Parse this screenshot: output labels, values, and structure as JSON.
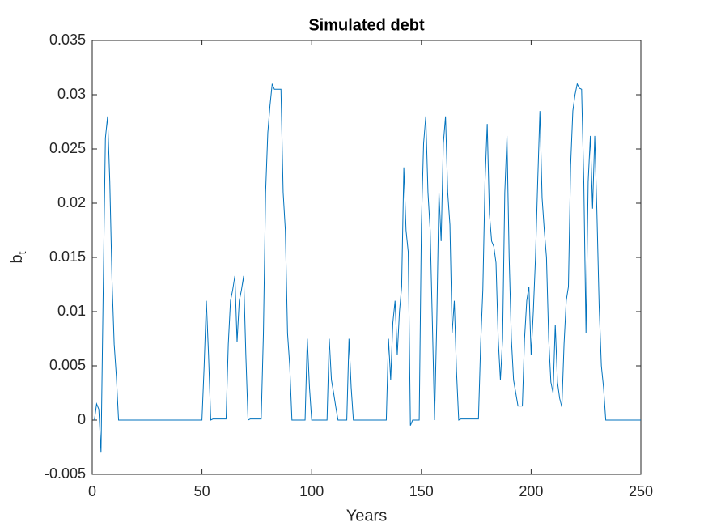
{
  "chart_data": {
    "type": "line",
    "title": "Simulated debt",
    "x_label": "Years",
    "y_label": "b",
    "y_label_subscript": "t",
    "color": "#0072bd",
    "x": [
      1,
      2,
      3,
      4,
      5,
      6,
      7,
      8,
      9,
      10,
      11,
      12,
      50,
      51,
      52,
      53,
      54,
      55,
      61,
      62,
      63,
      64,
      65,
      66,
      67,
      68,
      69,
      70,
      71,
      72,
      77,
      78,
      79,
      80,
      81,
      82,
      83,
      86,
      87,
      88,
      89,
      90,
      91,
      97,
      98,
      99,
      100,
      107,
      108,
      109,
      110,
      111,
      112,
      116,
      117,
      118,
      119,
      134,
      135,
      136,
      137,
      138,
      139,
      140,
      141,
      142,
      143,
      144,
      145,
      146,
      149,
      150,
      151,
      152,
      153,
      154,
      155,
      156,
      157,
      158,
      159,
      160,
      161,
      162,
      163,
      164,
      165,
      166,
      167,
      168,
      176,
      177,
      178,
      179,
      180,
      181,
      182,
      183,
      184,
      185,
      186,
      187,
      188,
      189,
      190,
      191,
      192,
      193,
      194,
      196,
      197,
      198,
      199,
      200,
      201,
      202,
      203,
      204,
      205,
      206,
      207,
      208,
      209,
      210,
      211,
      212,
      213,
      214,
      215,
      216,
      217,
      218,
      219,
      220,
      221,
      222,
      223,
      224,
      225,
      226,
      227,
      228,
      229,
      230,
      231,
      232,
      233,
      234,
      250
    ],
    "values": [
      0,
      0.0015,
      0.001,
      -0.003,
      0.012,
      0.026,
      0.028,
      0.022,
      0.013,
      0.007,
      0.004,
      0,
      0,
      0.005,
      0.011,
      0.006,
      0,
      0.0001,
      0.0001,
      0.007,
      0.011,
      0.012,
      0.0133,
      0.0072,
      0.011,
      0.012,
      0.0133,
      0.006,
      0,
      0.0001,
      0.0001,
      0.008,
      0.021,
      0.0265,
      0.029,
      0.031,
      0.0305,
      0.0305,
      0.021,
      0.0175,
      0.008,
      0.005,
      0,
      0,
      0.0075,
      0.003,
      0,
      0,
      0.0075,
      0.0037,
      0.0025,
      0.0012,
      0,
      0,
      0.0075,
      0.003,
      0,
      0,
      0.0075,
      0.0037,
      0.009,
      0.011,
      0.006,
      0.01,
      0.0123,
      0.0233,
      0.0175,
      0.0155,
      -0.0005,
      0,
      0,
      0.018,
      0.0255,
      0.028,
      0.021,
      0.0175,
      0.009,
      0,
      0.009,
      0.021,
      0.0165,
      0.0255,
      0.028,
      0.021,
      0.018,
      0.008,
      0.011,
      0.0045,
      0,
      0.0001,
      0.0001,
      0.007,
      0.012,
      0.022,
      0.0273,
      0.019,
      0.0165,
      0.016,
      0.0145,
      0.0075,
      0.0037,
      0.0075,
      0.021,
      0.0262,
      0.015,
      0.0075,
      0.0037,
      0.0025,
      0.0013,
      0.0013,
      0.0075,
      0.011,
      0.0123,
      0.006,
      0.01,
      0.015,
      0.022,
      0.0285,
      0.0205,
      0.0175,
      0.015,
      0.0075,
      0.0035,
      0.0025,
      0.0088,
      0.0035,
      0.002,
      0.0012,
      0.007,
      0.011,
      0.0123,
      0.0235,
      0.0285,
      0.03,
      0.031,
      0.0306,
      0.0305,
      0.022,
      0.008,
      0.022,
      0.0262,
      0.0195,
      0.0262,
      0.019,
      0.0105,
      0.005,
      0.003,
      0,
      0
    ],
    "xlim": [
      0,
      250
    ],
    "xticks": [
      0,
      50,
      100,
      150,
      200,
      250
    ],
    "ylim": [
      -0.005,
      0.035
    ],
    "yticks": [
      -0.005,
      0,
      0.005,
      0.01,
      0.015,
      0.02,
      0.025,
      0.03,
      0.035
    ],
    "grid": false
  }
}
